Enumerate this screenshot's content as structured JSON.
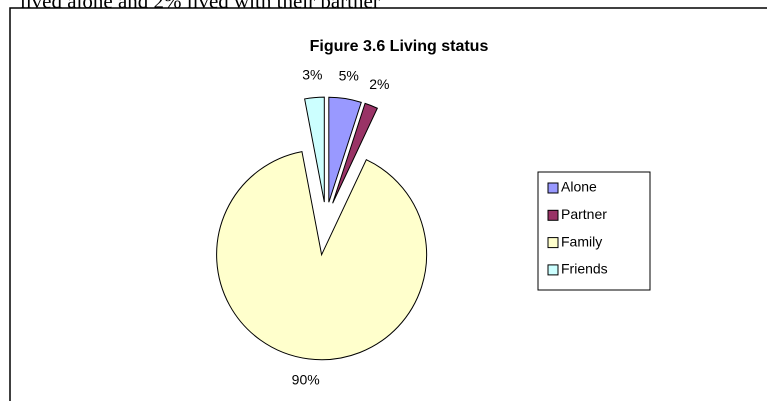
{
  "intro_text": "lived alone and 2% lived with their partner",
  "chart_data": {
    "type": "pie",
    "title": "Figure 3.6 Living status",
    "categories": [
      "Alone",
      "Partner",
      "Family",
      "Friends"
    ],
    "values": [
      5,
      2,
      90,
      3
    ],
    "value_labels": [
      "5%",
      "2%",
      "90%",
      "3%"
    ],
    "colors": [
      "#9999ff",
      "#993366",
      "#ffffcc",
      "#ccffff"
    ],
    "legend": "right"
  }
}
